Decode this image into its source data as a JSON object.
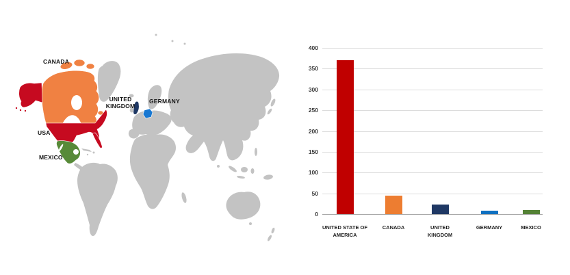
{
  "map": {
    "labels": {
      "canada": "CANADA",
      "usa": "USA",
      "mexico": "MEXICO",
      "uk_line1": "UNITED",
      "uk_line2": "KINGDOM",
      "germany": "GERMANY"
    },
    "colors": {
      "land": "#C3C3C3",
      "canada": "#F08142",
      "usa": "#C60A20",
      "mexico": "#578A38",
      "uk": "#1F3864",
      "germany": "#1878D2",
      "ocean": "#FFFFFF"
    }
  },
  "chart_data": {
    "type": "bar",
    "title": "",
    "xlabel": "",
    "ylabel": "",
    "categories": [
      "UNITED STATE OF AMERICA",
      "CANADA",
      "UNITED KINGDOM",
      "GERMANY",
      "MEXICO"
    ],
    "category_labels": [
      [
        "UNITED STATE OF",
        "AMERICA"
      ],
      [
        "CANADA"
      ],
      [
        "UNITED",
        "KINGDOM"
      ],
      [
        "GERMANY"
      ],
      [
        "MEXICO"
      ]
    ],
    "values": [
      370,
      45,
      23,
      9,
      10
    ],
    "bar_colors": [
      "#C00000",
      "#ED7D31",
      "#1F3864",
      "#0F70C0",
      "#548235"
    ],
    "ylim": [
      0,
      400
    ],
    "yticks": [
      0,
      50,
      100,
      150,
      200,
      250,
      300,
      350,
      400
    ],
    "grid": true,
    "legend": false
  }
}
